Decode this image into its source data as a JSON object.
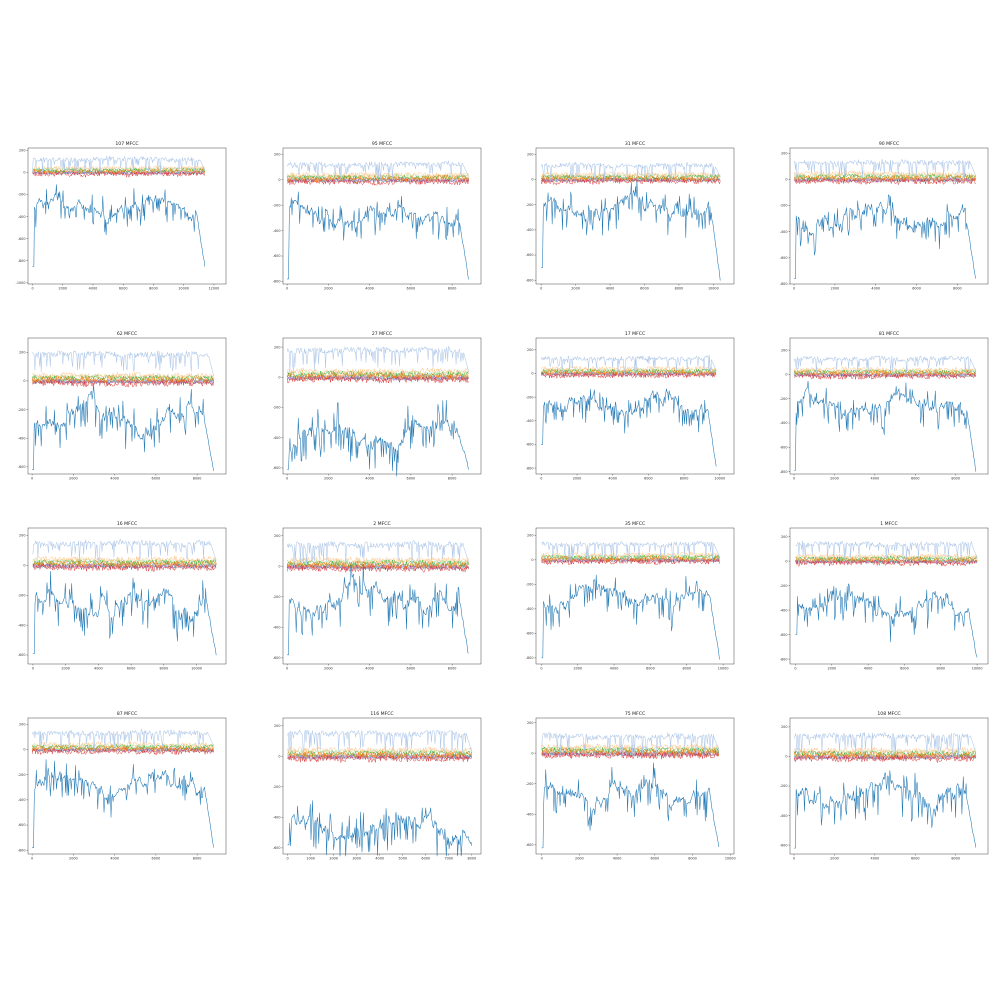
{
  "colors": {
    "lightblue": "#aec7e8",
    "blue": "#1f77b4",
    "orange": "#ff7f0e",
    "lightorange": "#ffbb78",
    "green": "#2ca02c",
    "red": "#d62728",
    "purple": "#9467bd",
    "pink": "#e377c2",
    "olive": "#bcbd22",
    "cyan": "#17becf",
    "lightgreen": "#98df8a",
    "gray": "#7f7f7f"
  },
  "chart_data": [
    {
      "type": "line",
      "title": "107 MFCC",
      "xticks": [
        "0",
        "2000",
        "4000",
        "6000",
        "8000",
        "10000",
        "12000"
      ],
      "yticks": [
        "200",
        "0",
        "-200",
        "-400",
        "-600",
        "-800",
        "-1000"
      ],
      "xlim": [
        -300,
        12800
      ],
      "ylim": [
        -1010,
        220
      ],
      "n": 11400,
      "low_level": -320,
      "high_level": 120,
      "start_level": -850,
      "end_level": -850
    },
    {
      "type": "line",
      "title": "95 MFCC",
      "xticks": [
        "0",
        "2000",
        "4000",
        "6000",
        "8000"
      ],
      "yticks": [
        "200",
        "0",
        "-200",
        "-400",
        "-600",
        "-800"
      ],
      "xlim": [
        -200,
        9400
      ],
      "ylim": [
        -820,
        250
      ],
      "n": 8800,
      "low_level": -300,
      "high_level": 120,
      "start_level": -780,
      "end_level": -780
    },
    {
      "type": "line",
      "title": "31 MFCC",
      "xticks": [
        "0",
        "2000",
        "4000",
        "6000",
        "8000",
        "10000"
      ],
      "yticks": [
        "200",
        "0",
        "-200",
        "-400",
        "-600",
        "-800"
      ],
      "xlim": [
        -300,
        11200
      ],
      "ylim": [
        -830,
        250
      ],
      "n": 10400,
      "low_level": -230,
      "high_level": 110,
      "start_level": -700,
      "end_level": -790
    },
    {
      "type": "line",
      "title": "90 MFCC",
      "xticks": [
        "0",
        "2000",
        "4000",
        "6000",
        "8000"
      ],
      "yticks": [
        "200",
        "0",
        "-200",
        "-400",
        "-600",
        "-800"
      ],
      "xlim": [
        -200,
        9500
      ],
      "ylim": [
        -800,
        240
      ],
      "n": 8900,
      "low_level": -290,
      "high_level": 130,
      "start_level": -760,
      "end_level": -760
    },
    {
      "type": "line",
      "title": "62 MFCC",
      "xticks": [
        "0",
        "2000",
        "4000",
        "6000",
        "8000"
      ],
      "yticks": [
        "200",
        "0",
        "-200",
        "-400",
        "-600"
      ],
      "xlim": [
        -200,
        9400
      ],
      "ylim": [
        -650,
        300
      ],
      "n": 8800,
      "low_level": -250,
      "high_level": 190,
      "start_level": -620,
      "end_level": -620
    },
    {
      "type": "line",
      "title": "27 MFCC",
      "xticks": [
        "0",
        "2000",
        "4000",
        "6000",
        "8000"
      ],
      "yticks": [
        "200",
        "0",
        "-200",
        "-400",
        "-600"
      ],
      "xlim": [
        -200,
        9400
      ],
      "ylim": [
        -640,
        260
      ],
      "n": 8800,
      "low_level": -380,
      "high_level": 180,
      "start_level": -610,
      "end_level": -600
    },
    {
      "type": "line",
      "title": "17 MFCC",
      "xticks": [
        "0",
        "2000",
        "4000",
        "6000",
        "8000",
        "10000"
      ],
      "yticks": [
        "200",
        "0",
        "-200",
        "-400",
        "-600",
        "-800"
      ],
      "xlim": [
        -300,
        10800
      ],
      "ylim": [
        -850,
        300
      ],
      "n": 9800,
      "low_level": -250,
      "high_level": 130,
      "start_level": -600,
      "end_level": -790
    },
    {
      "type": "line",
      "title": "81 MFCC",
      "xticks": [
        "0",
        "2000",
        "4000",
        "6000",
        "8000"
      ],
      "yticks": [
        "200",
        "0",
        "-200",
        "-400",
        "-600",
        "-800"
      ],
      "xlim": [
        -200,
        9600
      ],
      "ylim": [
        -820,
        300
      ],
      "n": 9000,
      "low_level": -250,
      "high_level": 130,
      "start_level": -790,
      "end_level": -790
    },
    {
      "type": "line",
      "title": "16 MFCC",
      "xticks": [
        "0",
        "2000",
        "4000",
        "6000",
        "8000",
        "10000"
      ],
      "yticks": [
        "200",
        "0",
        "-200",
        "-400",
        "-600"
      ],
      "xlim": [
        -300,
        11800
      ],
      "ylim": [
        -660,
        250
      ],
      "n": 11200,
      "low_level": -240,
      "high_level": 150,
      "start_level": -590,
      "end_level": -590
    },
    {
      "type": "line",
      "title": "2 MFCC",
      "xticks": [
        "0",
        "2000",
        "4000",
        "6000",
        "8000"
      ],
      "yticks": [
        "200",
        "0",
        "-200",
        "-400",
        "-600"
      ],
      "xlim": [
        -200,
        9400
      ],
      "ylim": [
        -640,
        250
      ],
      "n": 8800,
      "low_level": -200,
      "high_level": 140,
      "start_level": -580,
      "end_level": -580
    },
    {
      "type": "line",
      "title": "35 MFCC",
      "xticks": [
        "0",
        "2000",
        "4000",
        "6000",
        "8000",
        "10000"
      ],
      "yticks": [
        "200",
        "0",
        "-200",
        "-400",
        "-600",
        "-800"
      ],
      "xlim": [
        -300,
        10600
      ],
      "ylim": [
        -850,
        260
      ],
      "n": 9800,
      "low_level": -300,
      "high_level": 130,
      "start_level": -800,
      "end_level": -800
    },
    {
      "type": "line",
      "title": "1 MFCC",
      "xticks": [
        "0",
        "2000",
        "4000",
        "6000",
        "8000",
        "10000"
      ],
      "yticks": [
        "200",
        "0",
        "-200",
        "-400",
        "-600",
        "-800"
      ],
      "xlim": [
        -300,
        10600
      ],
      "ylim": [
        -840,
        270
      ],
      "n": 10000,
      "low_level": -350,
      "high_level": 140,
      "start_level": -600,
      "end_level": -800
    },
    {
      "type": "line",
      "title": "87 MFCC",
      "xticks": [
        "0",
        "2000",
        "4000",
        "6000",
        "8000"
      ],
      "yticks": [
        "200",
        "0",
        "-200",
        "-400",
        "-600",
        "-800"
      ],
      "xlim": [
        -200,
        9400
      ],
      "ylim": [
        -830,
        250
      ],
      "n": 8800,
      "low_level": -270,
      "high_level": 130,
      "start_level": -780,
      "end_level": -780
    },
    {
      "type": "line",
      "title": "116 MFCC",
      "xticks": [
        "0",
        "1000",
        "2000",
        "3000",
        "4000",
        "5000",
        "6000",
        "7000",
        "8000"
      ],
      "yticks": [
        "200",
        "0",
        "-200",
        "-400",
        "-600"
      ],
      "xlim": [
        -200,
        8400
      ],
      "ylim": [
        -640,
        250
      ],
      "n": 8000,
      "low_level": -470,
      "high_level": 150,
      "start_level": -580,
      "end_level": -580
    },
    {
      "type": "line",
      "title": "75 MFCC",
      "xticks": [
        "0",
        "2000",
        "4000",
        "6000",
        "8000",
        "10000"
      ],
      "yticks": [
        "200",
        "0",
        "-200",
        "-400",
        "-600"
      ],
      "xlim": [
        -300,
        10200
      ],
      "ylim": [
        -660,
        230
      ],
      "n": 9400,
      "low_level": -260,
      "high_level": 110,
      "start_level": -620,
      "end_level": -620
    },
    {
      "type": "line",
      "title": "108 MFCC",
      "xticks": [
        "0",
        "2000",
        "4000",
        "6000",
        "8000"
      ],
      "yticks": [
        "200",
        "0",
        "-200",
        "-400",
        "-600"
      ],
      "xlim": [
        -200,
        9600
      ],
      "ylim": [
        -660,
        260
      ],
      "n": 9000,
      "low_level": -260,
      "high_level": 140,
      "start_level": -620,
      "end_level": -620
    }
  ]
}
